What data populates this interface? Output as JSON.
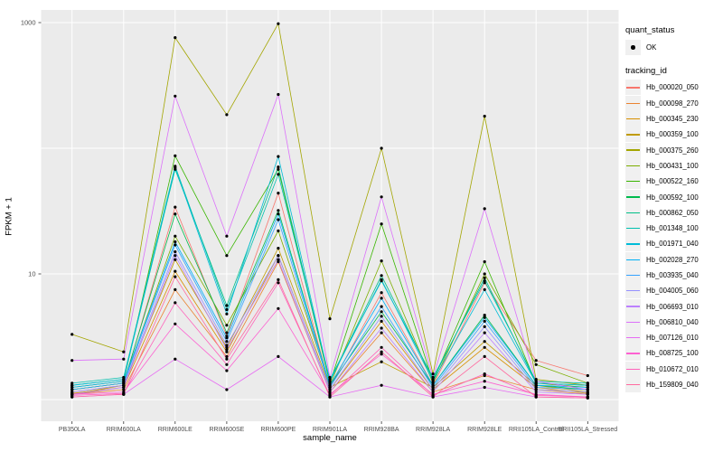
{
  "colors": {
    "panel_bg": "#EBEBEB",
    "grid": "#FFFFFF",
    "tick_mark": "#333333",
    "tick_text": "#4D4D4D",
    "point": "#000000",
    "legend_key_bg": "#F0F0F0"
  },
  "legend": {
    "quant_status": {
      "title": "quant_status",
      "items": [
        {
          "label": "OK"
        }
      ]
    },
    "tracking": {
      "title": "tracking_id"
    }
  },
  "chart_data": {
    "type": "line",
    "title": "",
    "xlabel": "sample_name",
    "ylabel": "FPKM + 1",
    "y_scale": "log10",
    "ylim": [
      0.7,
      1200
    ],
    "y_tick_values": [
      10,
      1000
    ],
    "y_tick_labels": [
      "10",
      "1000"
    ],
    "y_gridline_values": [
      1,
      10,
      100,
      1000
    ],
    "grid": "on",
    "legend_position": "right",
    "categories": [
      "PB350LA",
      "RRIM600LA",
      "RRIM600LE",
      "RRIM600SE",
      "RRIM600PE",
      "RRIM901LA",
      "RRIM928BA",
      "RRIM928LA",
      "RRIM928LE",
      "RRII105LA_Control",
      "RRII105LA_Stressed"
    ],
    "series": [
      {
        "name": "Hb_000020_050",
        "color": "#F8766D",
        "values": [
          1.15,
          1.3,
          34,
          3.2,
          44,
          1.25,
          7.1,
          1.3,
          8.5,
          2.05,
          1.55
        ]
      },
      {
        "name": "Hb_000098_270",
        "color": "#EA8331",
        "values": [
          1.1,
          1.2,
          7.5,
          2.2,
          12.5,
          1.15,
          3.4,
          1.15,
          1.55,
          1.2,
          1.1
        ]
      },
      {
        "name": "Hb_000345_230",
        "color": "#D89000",
        "values": [
          1.12,
          1.25,
          10.5,
          2.4,
          14,
          1.2,
          4.2,
          1.2,
          2.6,
          1.25,
          1.12
        ]
      },
      {
        "name": "Hb_000359_100",
        "color": "#C09B00",
        "values": [
          1.1,
          1.3,
          13,
          2.6,
          16,
          1.25,
          2.0,
          1.25,
          2.9,
          1.3,
          1.15
        ]
      },
      {
        "name": "Hb_000375_260",
        "color": "#A3A500",
        "values": [
          3.3,
          2.4,
          760,
          185,
          980,
          4.4,
          100,
          1.6,
          180,
          1.45,
          1.3
        ]
      },
      {
        "name": "Hb_000431_100",
        "color": "#7CAE00",
        "values": [
          1.2,
          1.35,
          20,
          3.9,
          22,
          1.3,
          12.7,
          1.35,
          10,
          1.9,
          1.35
        ]
      },
      {
        "name": "Hb_000522_160",
        "color": "#39B600",
        "values": [
          1.25,
          1.4,
          87,
          14,
          68,
          1.35,
          25,
          1.4,
          12.5,
          1.35,
          1.25
        ]
      },
      {
        "name": "Hb_000592_100",
        "color": "#00BB4E",
        "values": [
          1.2,
          1.35,
          30,
          3.4,
          32,
          1.3,
          5.0,
          1.3,
          4.7,
          1.3,
          1.2
        ]
      },
      {
        "name": "Hb_000862_050",
        "color": "#00C087",
        "values": [
          1.3,
          1.45,
          68,
          5.6,
          71,
          1.4,
          9.7,
          1.45,
          9.3,
          1.35,
          1.3
        ]
      },
      {
        "name": "Hb_001348_100",
        "color": "#00C0AF",
        "values": [
          1.35,
          1.5,
          72,
          5.2,
          62,
          1.45,
          8.8,
          1.5,
          8.8,
          1.4,
          1.35
        ]
      },
      {
        "name": "Hb_001971_040",
        "color": "#00BCD8",
        "values": [
          1.3,
          1.45,
          70,
          4.8,
          86,
          1.4,
          9.0,
          1.4,
          7.5,
          1.35,
          1.3
        ]
      },
      {
        "name": "Hb_002028_270",
        "color": "#00B0F6",
        "values": [
          1.25,
          1.4,
          18,
          3.1,
          30,
          1.3,
          6.4,
          1.3,
          4.5,
          1.3,
          1.25
        ]
      },
      {
        "name": "Hb_003935_040",
        "color": "#35A2FF",
        "values": [
          1.2,
          1.35,
          17,
          2.9,
          27,
          1.25,
          5.5,
          1.25,
          4.2,
          1.25,
          1.2
        ]
      },
      {
        "name": "Hb_004005_060",
        "color": "#9590FF",
        "values": [
          1.15,
          1.3,
          15,
          2.7,
          14,
          1.2,
          4.6,
          1.2,
          3.8,
          1.2,
          1.15
        ]
      },
      {
        "name": "Hb_006693_010",
        "color": "#BC81FF",
        "values": [
          1.1,
          1.25,
          14,
          2.5,
          13,
          1.15,
          3.7,
          1.15,
          3.4,
          1.15,
          1.1
        ]
      },
      {
        "name": "Hb_006810_040",
        "color": "#DC71FA",
        "values": [
          2.05,
          2.1,
          260,
          20,
          268,
          1.5,
          41,
          1.5,
          33,
          1.4,
          1.2
        ]
      },
      {
        "name": "Hb_007126_010",
        "color": "#E76BF3",
        "values": [
          1.05,
          1.1,
          2.1,
          1.2,
          2.2,
          1.05,
          1.3,
          1.05,
          1.25,
          1.05,
          1.03
        ]
      },
      {
        "name": "Hb_008725_100",
        "color": "#FD61D1",
        "values": [
          1.1,
          1.15,
          4.0,
          1.7,
          5.3,
          1.1,
          2.3,
          1.1,
          1.4,
          1.1,
          1.05
        ]
      },
      {
        "name": "Hb_010672_010",
        "color": "#FF62BB",
        "values": [
          1.08,
          1.12,
          5.9,
          1.9,
          8.5,
          1.08,
          2.6,
          1.08,
          1.6,
          1.08,
          1.05
        ]
      },
      {
        "name": "Hb_159809_040",
        "color": "#FF6A9F",
        "values": [
          1.05,
          1.1,
          9.5,
          2.1,
          9.0,
          1.05,
          2.4,
          1.05,
          2.2,
          1.05,
          1.03
        ]
      }
    ]
  }
}
